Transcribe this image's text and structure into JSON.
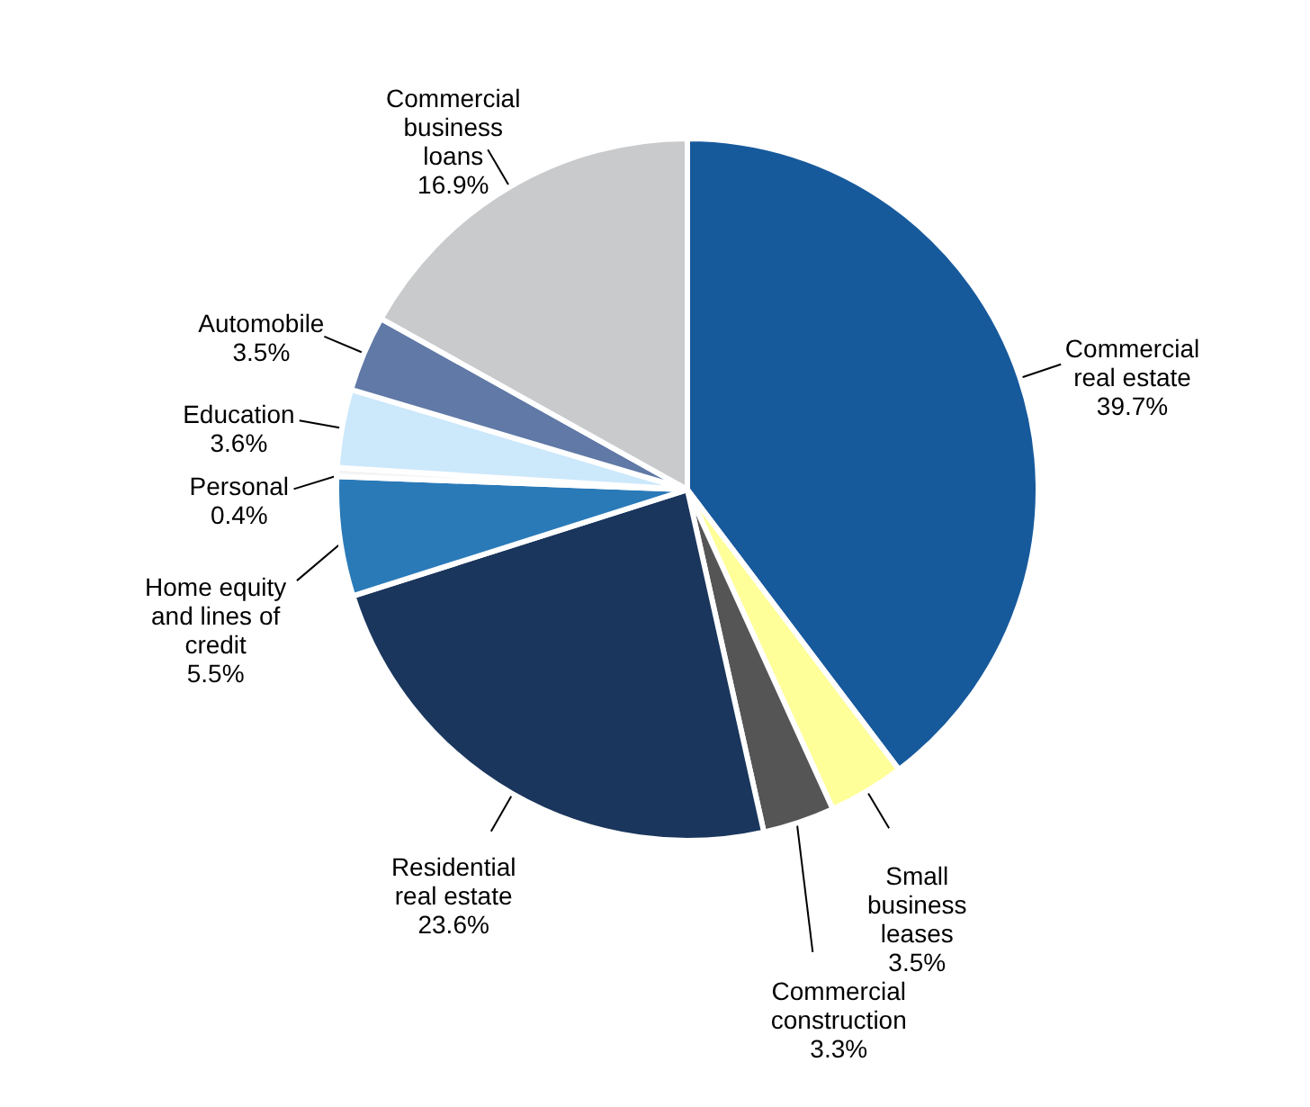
{
  "chart_data": {
    "type": "pie",
    "categories": [
      "Commercial real estate",
      "Small business leases",
      "Commercial construction",
      "Residential real estate",
      "Home equity and lines of credit",
      "Personal",
      "Education",
      "Automobile",
      "Commercial business loans"
    ],
    "values": [
      39.7,
      3.5,
      3.3,
      23.6,
      5.5,
      0.4,
      3.6,
      3.5,
      16.9
    ],
    "value_labels": [
      "39.7%",
      "3.5%",
      "3.3%",
      "23.6%",
      "5.5%",
      "0.4%",
      "3.6%",
      "3.5%",
      "16.9%"
    ],
    "colors": [
      "#175a9c",
      "#ffff99",
      "#555555",
      "#1a365d",
      "#2a7ab8",
      "#f4f4f4",
      "#cce8fb",
      "#6079a6",
      "#c9cacc"
    ]
  }
}
